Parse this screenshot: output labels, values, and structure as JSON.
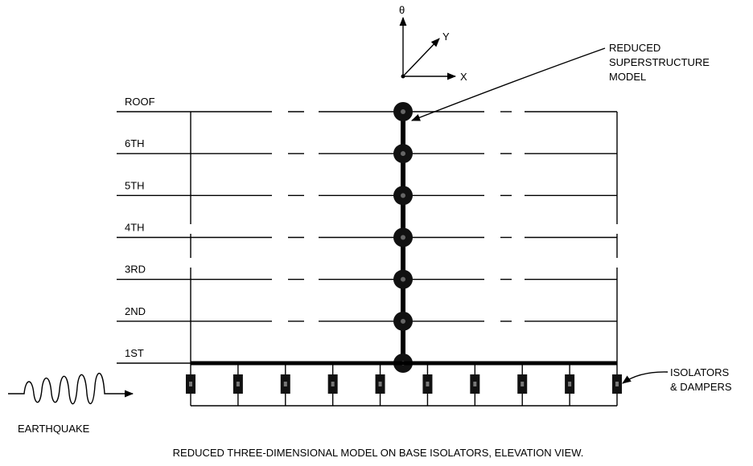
{
  "axes": {
    "theta": "θ",
    "y": "Y",
    "x": "X"
  },
  "callouts": {
    "superstructure": [
      "REDUCED",
      "SUPERSTRUCTURE",
      "MODEL"
    ],
    "isolators": [
      "ISOLATORS",
      "& DAMPERS"
    ]
  },
  "floors": [
    "ROOF",
    "6TH",
    "5TH",
    "4TH",
    "3RD",
    "2ND",
    "1ST"
  ],
  "input": "EARTHQUAKE",
  "caption": "REDUCED THREE-DIMENSIONAL MODEL ON BASE ISOLATORS, ELEVATION VIEW."
}
